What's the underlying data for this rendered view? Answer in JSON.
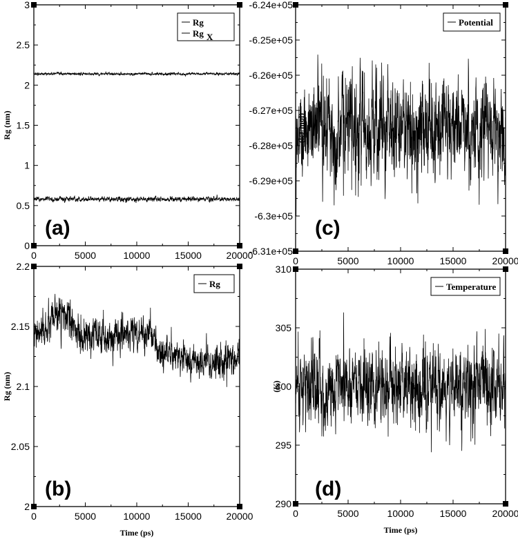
{
  "chart_data": [
    {
      "id": "a",
      "type": "line",
      "panel_label": "(a)",
      "xlabel": "",
      "ylabel": "Rg (nm)",
      "xlim": [
        0,
        20000
      ],
      "ylim": [
        0,
        3
      ],
      "xticks": [
        "0",
        "5000",
        "10000",
        "15000",
        "20000"
      ],
      "yticks": [
        "0",
        "0.5",
        "1",
        "1.5",
        "2",
        "2.5",
        "3"
      ],
      "legend": "top-right",
      "series": [
        {
          "name": "Rg",
          "sub": "",
          "mean": 2.14,
          "noise": 0.008,
          "x_range": [
            0,
            20000
          ]
        },
        {
          "name": "Rg",
          "sub": "X",
          "mean": 0.58,
          "noise": 0.015,
          "x_range": [
            0,
            20000
          ]
        }
      ]
    },
    {
      "id": "b",
      "type": "line",
      "panel_label": "(b)",
      "xlabel": "Time (ps)",
      "ylabel": "Rg (nm)",
      "xlim": [
        0,
        20000
      ],
      "ylim": [
        2,
        2.2
      ],
      "xticks": [
        "0",
        "5000",
        "10000",
        "15000",
        "20000"
      ],
      "yticks": [
        "2",
        "2.05",
        "2.1",
        "2.15",
        "2.2"
      ],
      "legend": "top-right",
      "series": [
        {
          "name": "Rg",
          "sub": "",
          "trend": [
            [
              0,
              2.14
            ],
            [
              1500,
              2.15
            ],
            [
              2500,
              2.16
            ],
            [
              3500,
              2.155
            ],
            [
              4500,
              2.14
            ],
            [
              7000,
              2.14
            ],
            [
              9000,
              2.145
            ],
            [
              11500,
              2.145
            ],
            [
              12000,
              2.13
            ],
            [
              14000,
              2.125
            ],
            [
              16000,
              2.12
            ],
            [
              17500,
              2.118
            ],
            [
              20000,
              2.125
            ]
          ],
          "noise": 0.007,
          "x_range": [
            0,
            20000
          ]
        }
      ]
    },
    {
      "id": "c",
      "type": "line",
      "panel_label": "(c)",
      "xlabel": "",
      "ylabel": "(kJ/mol)",
      "xlim": [
        0,
        20000
      ],
      "ylim": [
        -631000,
        -624000
      ],
      "xticks": [
        "0",
        "5000",
        "10000",
        "15000",
        "20000"
      ],
      "yticks": [
        "-6.31e+05",
        "-6.3e+05",
        "-6.29e+05",
        "-6.28e+05",
        "-6.27e+05",
        "-6.26e+05",
        "-6.25e+05",
        "-6.24e+05"
      ],
      "legend": "top-right",
      "series": [
        {
          "name": "Potential",
          "sub": "",
          "mean": -627500,
          "noise": 700,
          "x_range": [
            0,
            20000
          ]
        }
      ]
    },
    {
      "id": "d",
      "type": "line",
      "panel_label": "(d)",
      "xlabel": "Time (ps)",
      "ylabel": "(K)",
      "xlim": [
        0,
        20000
      ],
      "ylim": [
        290,
        310
      ],
      "xticks": [
        "0",
        "5000",
        "10000",
        "15000",
        "20000"
      ],
      "yticks": [
        "290",
        "295",
        "300",
        "305",
        "310"
      ],
      "legend": "top-right",
      "series": [
        {
          "name": "Temperature",
          "sub": "",
          "mean": 300,
          "noise": 1.7,
          "x_range": [
            0,
            20000
          ]
        }
      ]
    }
  ]
}
